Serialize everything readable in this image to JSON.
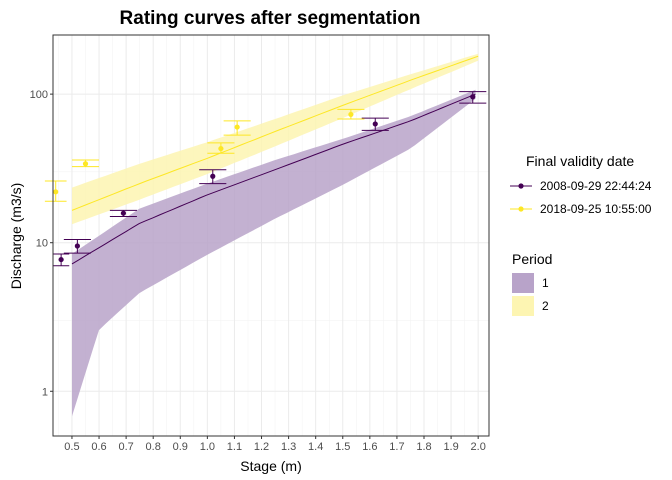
{
  "chart_data": {
    "type": "line",
    "title": "Rating curves after segmentation",
    "xlabel": "Stage (m)",
    "ylabel": "Discharge (m3/s)",
    "xlim": [
      0.43,
      2.04
    ],
    "ylim": [
      0.5,
      250
    ],
    "yscale": "log",
    "grid": true,
    "x_ticks": [
      "0.5",
      "0.6",
      "0.7",
      "0.8",
      "0.9",
      "1.0",
      "1.1",
      "1.2",
      "1.3",
      "1.4",
      "1.5",
      "1.6",
      "1.7",
      "1.8",
      "1.9",
      "2.0"
    ],
    "y_ticks": [
      "1",
      "10",
      "100"
    ],
    "legend_lines_title": "Final validity date",
    "legend_bands_title": "Period",
    "series": [
      {
        "name": "2008-09-29 22:44:24",
        "period": "1",
        "color": "#440154",
        "band_color": "#b8a3c9",
        "curve": [
          [
            0.5,
            7.2
          ],
          [
            0.75,
            13.5
          ],
          [
            1.0,
            21.0
          ],
          [
            1.25,
            31.0
          ],
          [
            1.5,
            46.0
          ],
          [
            1.75,
            66.0
          ],
          [
            1.99,
            100.0
          ]
        ],
        "band_upper": [
          [
            0.5,
            8.4
          ],
          [
            0.75,
            17.0
          ],
          [
            1.0,
            25.0
          ],
          [
            1.25,
            36.0
          ],
          [
            1.5,
            50.0
          ],
          [
            1.75,
            71.0
          ],
          [
            1.99,
            107.0
          ]
        ],
        "band_lower": [
          [
            0.5,
            0.68
          ],
          [
            0.6,
            2.6
          ],
          [
            0.75,
            4.6
          ],
          [
            1.0,
            8.3
          ],
          [
            1.25,
            14.5
          ],
          [
            1.5,
            24.5
          ],
          [
            1.75,
            43.0
          ],
          [
            1.99,
            93.0
          ]
        ],
        "points": [
          {
            "x": 0.46,
            "y": 7.7,
            "lo": 7.0,
            "hi": 8.4,
            "half_w": 0.03
          },
          {
            "x": 0.52,
            "y": 9.5,
            "lo": 8.5,
            "hi": 10.5,
            "half_w": 0.05
          },
          {
            "x": 0.69,
            "y": 15.8,
            "lo": 15.0,
            "hi": 16.5,
            "half_w": 0.05
          },
          {
            "x": 1.02,
            "y": 28.0,
            "lo": 25.0,
            "hi": 31.0,
            "half_w": 0.05
          },
          {
            "x": 1.62,
            "y": 63.0,
            "lo": 57.0,
            "hi": 69.0,
            "half_w": 0.05
          },
          {
            "x": 1.98,
            "y": 96.0,
            "lo": 87.0,
            "hi": 104.0,
            "half_w": 0.05
          }
        ]
      },
      {
        "name": "2018-09-25 10:55:00",
        "period": "2",
        "color": "#fde725",
        "band_color": "#fdf5b2",
        "curve": [
          [
            0.5,
            16.5
          ],
          [
            0.75,
            25.0
          ],
          [
            1.0,
            37.0
          ],
          [
            1.25,
            56.0
          ],
          [
            1.5,
            84.0
          ],
          [
            1.75,
            124.0
          ],
          [
            2.0,
            180.0
          ]
        ],
        "band_upper": [
          [
            0.5,
            23.5
          ],
          [
            0.75,
            34.0
          ],
          [
            1.0,
            47.5
          ],
          [
            1.25,
            68.0
          ],
          [
            1.5,
            98.0
          ],
          [
            1.75,
            136.0
          ],
          [
            2.0,
            187.0
          ]
        ],
        "band_lower": [
          [
            0.5,
            13.3
          ],
          [
            0.75,
            19.5
          ],
          [
            1.0,
            29.0
          ],
          [
            1.25,
            44.5
          ],
          [
            1.5,
            69.0
          ],
          [
            1.75,
            108.0
          ],
          [
            2.0,
            168.0
          ]
        ],
        "points": [
          {
            "x": 0.44,
            "y": 22.0,
            "lo": 19.0,
            "hi": 26.0,
            "half_w": 0.04
          },
          {
            "x": 0.55,
            "y": 34.0,
            "lo": 32.5,
            "hi": 36.0,
            "half_w": 0.05
          },
          {
            "x": 1.05,
            "y": 43.0,
            "lo": 40.0,
            "hi": 47.0,
            "half_w": 0.05
          },
          {
            "x": 1.11,
            "y": 60.0,
            "lo": 53.0,
            "hi": 66.0,
            "half_w": 0.05
          },
          {
            "x": 1.53,
            "y": 73.0,
            "lo": 68.0,
            "hi": 79.0,
            "half_w": 0.05
          }
        ]
      }
    ]
  }
}
